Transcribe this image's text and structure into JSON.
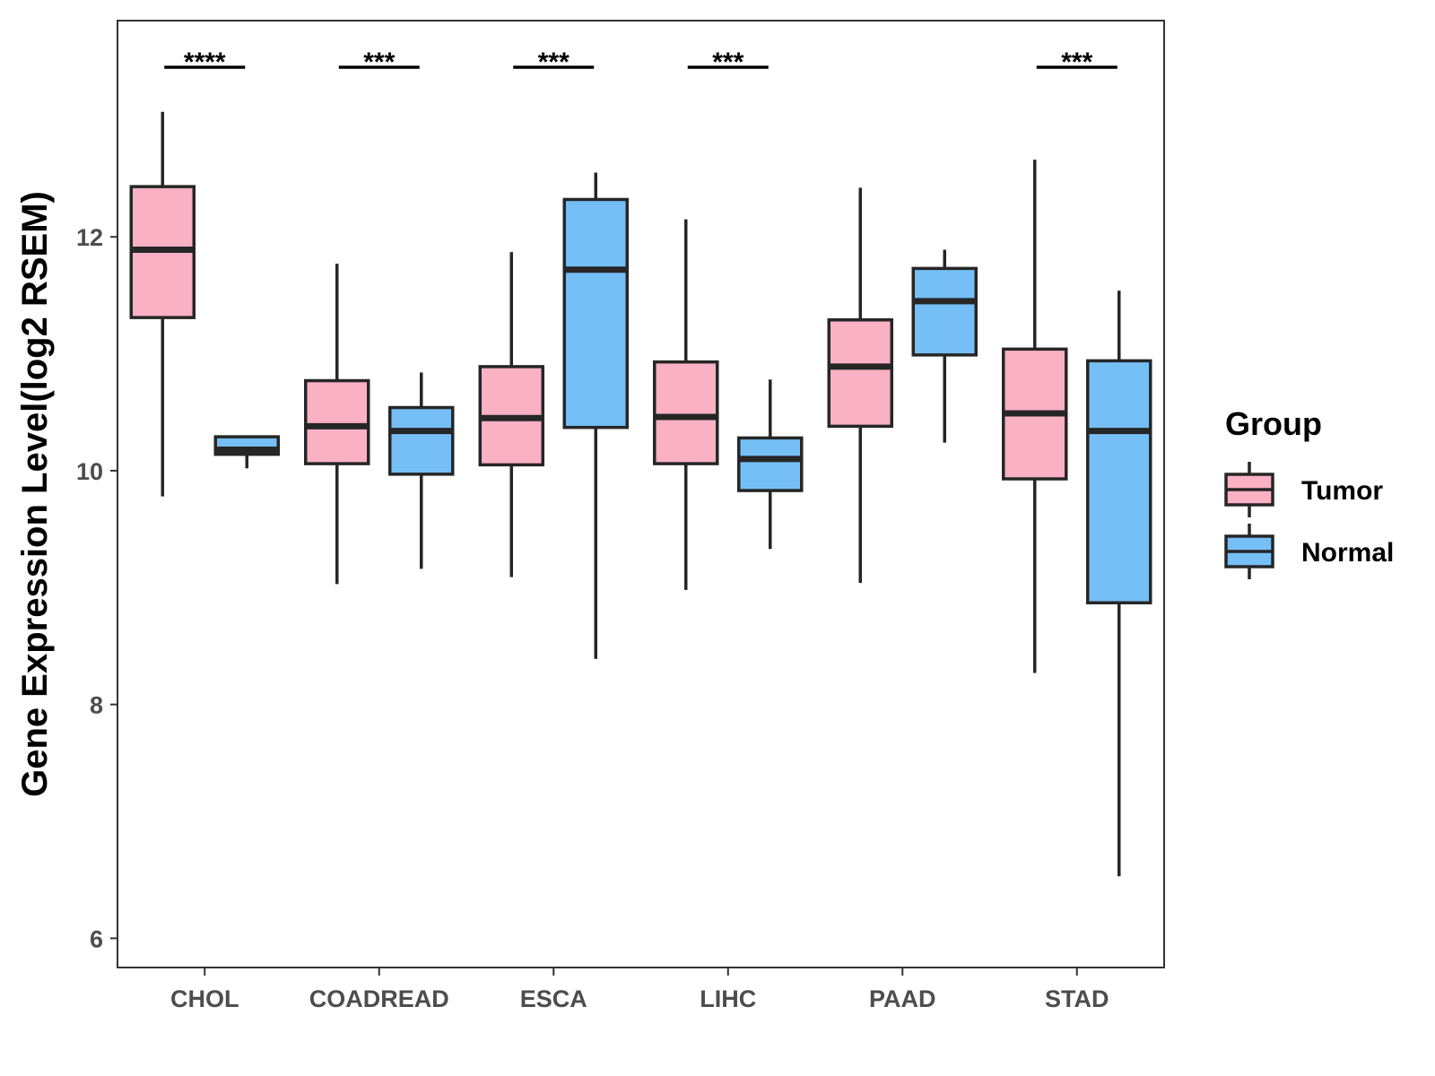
{
  "chart_data": {
    "type": "boxplot",
    "title": "",
    "xlabel": "",
    "ylabel": "Gene Expression Level(log2 RSEM)",
    "ylim": [
      5.75,
      13.85
    ],
    "yticks": [
      6,
      8,
      10,
      12
    ],
    "grid": false,
    "legend_position": "right",
    "legend_title": "Group",
    "categories": [
      "CHOL",
      "COADREAD",
      "ESCA",
      "LIHC",
      "PAAD",
      "STAD"
    ],
    "series": [
      {
        "name": "Tumor",
        "color": "#FAB1C3",
        "boxes": [
          {
            "min": 9.78,
            "q1": 11.31,
            "median": 11.89,
            "q3": 12.43,
            "max": 13.07
          },
          {
            "min": 9.03,
            "q1": 10.06,
            "median": 10.38,
            "q3": 10.77,
            "max": 11.77
          },
          {
            "min": 9.09,
            "q1": 10.05,
            "median": 10.45,
            "q3": 10.89,
            "max": 11.87
          },
          {
            "min": 8.98,
            "q1": 10.06,
            "median": 10.46,
            "q3": 10.93,
            "max": 12.15
          },
          {
            "min": 9.04,
            "q1": 10.38,
            "median": 10.89,
            "q3": 11.29,
            "max": 12.42
          },
          {
            "min": 8.27,
            "q1": 9.93,
            "median": 10.49,
            "q3": 11.04,
            "max": 12.66
          }
        ]
      },
      {
        "name": "Normal",
        "color": "#76BFF6",
        "boxes": [
          {
            "min": 10.02,
            "q1": 10.14,
            "median": 10.18,
            "q3": 10.29,
            "max": 10.29
          },
          {
            "min": 9.16,
            "q1": 9.97,
            "median": 10.34,
            "q3": 10.54,
            "max": 10.84
          },
          {
            "min": 8.39,
            "q1": 10.37,
            "median": 11.72,
            "q3": 12.32,
            "max": 12.55
          },
          {
            "min": 9.33,
            "q1": 9.83,
            "median": 10.1,
            "q3": 10.28,
            "max": 10.78
          },
          {
            "min": 10.24,
            "q1": 10.99,
            "median": 11.45,
            "q3": 11.73,
            "max": 11.89
          },
          {
            "min": 6.53,
            "q1": 8.87,
            "median": 10.34,
            "q3": 10.94,
            "max": 11.54
          }
        ]
      }
    ],
    "significance": [
      {
        "category": "CHOL",
        "label": "****"
      },
      {
        "category": "COADREAD",
        "label": "***"
      },
      {
        "category": "ESCA",
        "label": "***"
      },
      {
        "category": "LIHC",
        "label": "***"
      },
      {
        "category": "PAAD",
        "label": ""
      },
      {
        "category": "STAD",
        "label": "***"
      }
    ]
  }
}
